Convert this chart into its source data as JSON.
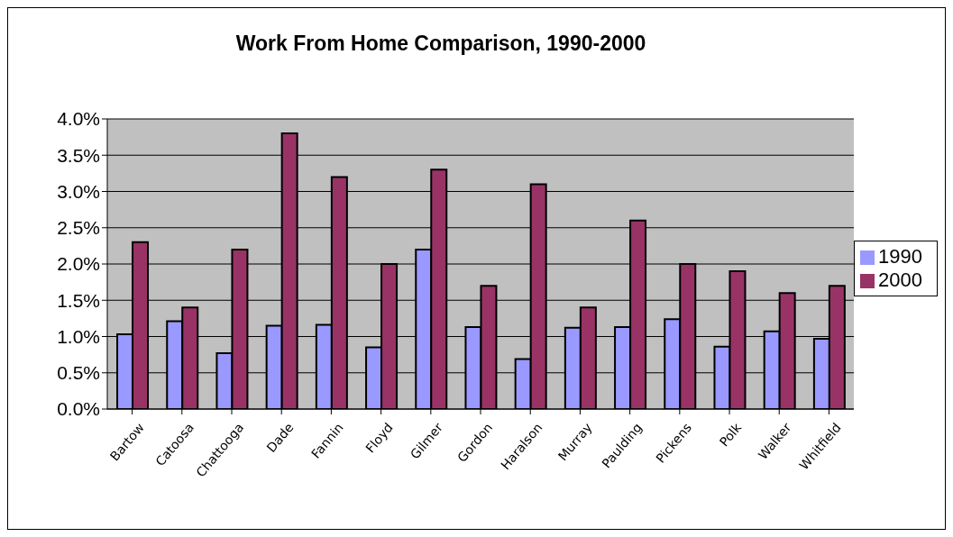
{
  "chart_data": {
    "type": "bar",
    "title": "Work From Home Comparison, 1990-2000",
    "categories": [
      "Bartow",
      "Catoosa",
      "Chattooga",
      "Dade",
      "Fannin",
      "Floyd",
      "Gilmer",
      "Gordon",
      "Haralson",
      "Murray",
      "Paulding",
      "Pickens",
      "Polk",
      "Walker",
      "Whitfield"
    ],
    "series": [
      {
        "name": "1990",
        "color": "#9999ff",
        "values": [
          1.03,
          1.21,
          0.77,
          1.15,
          1.16,
          0.85,
          2.2,
          1.13,
          0.69,
          1.12,
          1.13,
          1.24,
          0.86,
          1.07,
          0.97
        ]
      },
      {
        "name": "2000",
        "color": "#993366",
        "values": [
          2.3,
          1.4,
          2.2,
          3.8,
          3.2,
          2.0,
          3.3,
          1.7,
          3.1,
          1.4,
          2.6,
          2.0,
          1.9,
          1.6,
          1.7
        ]
      }
    ],
    "ylim": [
      0,
      4
    ],
    "yticks": [
      {
        "value": 0,
        "label": "0.0%"
      },
      {
        "value": 0.5,
        "label": "0.5%"
      },
      {
        "value": 1,
        "label": "1.0%"
      },
      {
        "value": 1.5,
        "label": "1.5%"
      },
      {
        "value": 2,
        "label": "2.0%"
      },
      {
        "value": 2.5,
        "label": "2.5%"
      },
      {
        "value": 3,
        "label": "3.0%"
      },
      {
        "value": 3.5,
        "label": "3.5%"
      },
      {
        "value": 4,
        "label": "4.0%"
      }
    ],
    "grid": "y",
    "legend": "right"
  }
}
